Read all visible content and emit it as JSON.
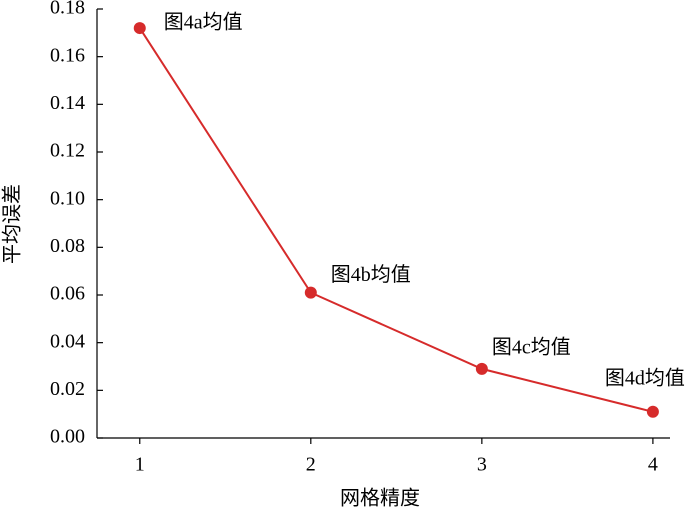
{
  "chart_data": {
    "type": "line",
    "x_label": "网格精度",
    "y_label": "平均误差",
    "x": [
      1,
      2,
      3,
      4
    ],
    "series": [
      {
        "color": "#d62b2b",
        "values": [
          0.172,
          0.061,
          0.029,
          0.011
        ],
        "value_labels": [
          "图4a均值",
          "图4b均值",
          "图4c均值",
          "图4d均值"
        ]
      }
    ],
    "xlim": [
      0.75,
      4.1
    ],
    "xticks": [
      1,
      2,
      3,
      4
    ],
    "ylim": [
      0,
      0.18
    ],
    "yticks": [
      {
        "value": 0,
        "label": "0.00"
      },
      {
        "value": 0.02,
        "label": "0.02"
      },
      {
        "value": 0.04,
        "label": "0.04"
      },
      {
        "value": 0.06,
        "label": "0.06"
      },
      {
        "value": 0.08,
        "label": "0.08"
      },
      {
        "value": 0.1,
        "label": "0.10"
      },
      {
        "value": 0.12,
        "label": "0.12"
      },
      {
        "value": 0.14,
        "label": "0.14"
      },
      {
        "value": 0.16,
        "label": "0.16"
      },
      {
        "value": 0.18,
        "label": "0.18"
      }
    ],
    "grid": false
  }
}
